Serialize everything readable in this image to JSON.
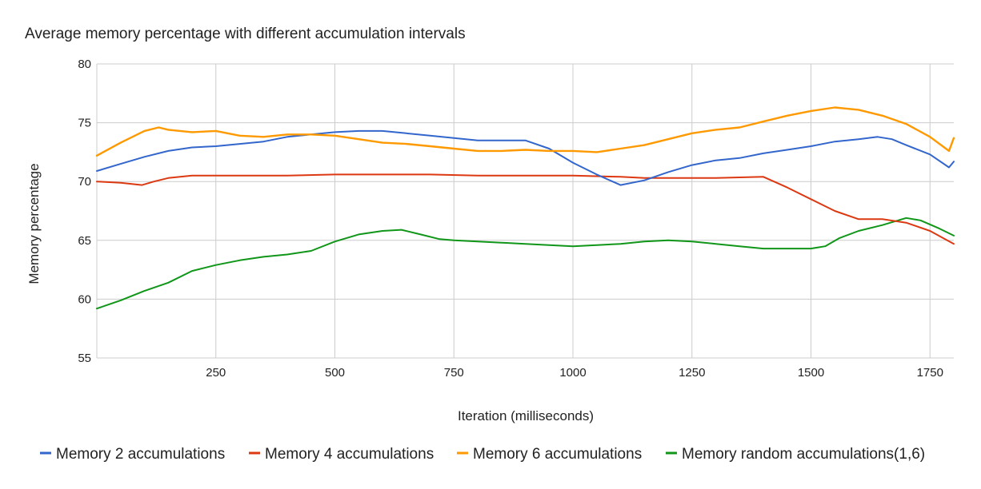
{
  "chart_data": {
    "type": "line",
    "title": "Average memory percentage with different accumulation intervals",
    "xlabel": "Iteration (milliseconds)",
    "ylabel": "Memory percentage",
    "xlim": [
      0,
      1800
    ],
    "ylim": [
      55,
      80
    ],
    "xticks": [
      250,
      500,
      750,
      1000,
      1250,
      1500,
      1750
    ],
    "yticks": [
      55,
      60,
      65,
      70,
      75,
      80
    ],
    "grid": true,
    "legend_position": "bottom",
    "series": [
      {
        "name": "Memory 2 accumulations",
        "color": "#3366cc",
        "points": [
          [
            0,
            70.9
          ],
          [
            50,
            71.5
          ],
          [
            100,
            72.1
          ],
          [
            150,
            72.6
          ],
          [
            200,
            72.9
          ],
          [
            250,
            73.0
          ],
          [
            300,
            73.2
          ],
          [
            350,
            73.4
          ],
          [
            400,
            73.8
          ],
          [
            450,
            74.0
          ],
          [
            500,
            74.2
          ],
          [
            550,
            74.3
          ],
          [
            600,
            74.3
          ],
          [
            650,
            74.1
          ],
          [
            700,
            73.9
          ],
          [
            750,
            73.7
          ],
          [
            800,
            73.5
          ],
          [
            850,
            73.5
          ],
          [
            900,
            73.5
          ],
          [
            950,
            72.8
          ],
          [
            1000,
            71.6
          ],
          [
            1050,
            70.6
          ],
          [
            1100,
            69.7
          ],
          [
            1150,
            70.1
          ],
          [
            1200,
            70.8
          ],
          [
            1250,
            71.4
          ],
          [
            1300,
            71.8
          ],
          [
            1350,
            72.0
          ],
          [
            1400,
            72.4
          ],
          [
            1450,
            72.7
          ],
          [
            1500,
            73.0
          ],
          [
            1550,
            73.4
          ],
          [
            1600,
            73.6
          ],
          [
            1640,
            73.8
          ],
          [
            1670,
            73.6
          ],
          [
            1700,
            73.1
          ],
          [
            1750,
            72.3
          ],
          [
            1790,
            71.2
          ],
          [
            1800,
            71.7
          ]
        ]
      },
      {
        "name": "Memory 4 accumulations",
        "color": "#dc3912",
        "points": [
          [
            0,
            70.0
          ],
          [
            50,
            69.9
          ],
          [
            95,
            69.7
          ],
          [
            120,
            70.0
          ],
          [
            150,
            70.3
          ],
          [
            200,
            70.5
          ],
          [
            250,
            70.5
          ],
          [
            300,
            70.5
          ],
          [
            400,
            70.5
          ],
          [
            500,
            70.6
          ],
          [
            600,
            70.6
          ],
          [
            700,
            70.6
          ],
          [
            800,
            70.5
          ],
          [
            900,
            70.5
          ],
          [
            1000,
            70.5
          ],
          [
            1100,
            70.4
          ],
          [
            1150,
            70.3
          ],
          [
            1200,
            70.3
          ],
          [
            1250,
            70.3
          ],
          [
            1300,
            70.3
          ],
          [
            1400,
            70.4
          ],
          [
            1450,
            69.5
          ],
          [
            1500,
            68.5
          ],
          [
            1550,
            67.5
          ],
          [
            1600,
            66.8
          ],
          [
            1650,
            66.8
          ],
          [
            1700,
            66.5
          ],
          [
            1750,
            65.8
          ],
          [
            1800,
            64.7
          ]
        ]
      },
      {
        "name": "Memory 6 accumulations",
        "color": "#ff9900",
        "points": [
          [
            0,
            72.2
          ],
          [
            50,
            73.3
          ],
          [
            100,
            74.3
          ],
          [
            130,
            74.6
          ],
          [
            150,
            74.4
          ],
          [
            200,
            74.2
          ],
          [
            250,
            74.3
          ],
          [
            300,
            73.9
          ],
          [
            350,
            73.8
          ],
          [
            400,
            74.0
          ],
          [
            450,
            74.0
          ],
          [
            500,
            73.9
          ],
          [
            550,
            73.6
          ],
          [
            600,
            73.3
          ],
          [
            650,
            73.2
          ],
          [
            700,
            73.0
          ],
          [
            750,
            72.8
          ],
          [
            800,
            72.6
          ],
          [
            850,
            72.6
          ],
          [
            900,
            72.7
          ],
          [
            950,
            72.6
          ],
          [
            1000,
            72.6
          ],
          [
            1050,
            72.5
          ],
          [
            1100,
            72.8
          ],
          [
            1150,
            73.1
          ],
          [
            1200,
            73.6
          ],
          [
            1250,
            74.1
          ],
          [
            1300,
            74.4
          ],
          [
            1350,
            74.6
          ],
          [
            1400,
            75.1
          ],
          [
            1450,
            75.6
          ],
          [
            1500,
            76.0
          ],
          [
            1550,
            76.3
          ],
          [
            1600,
            76.1
          ],
          [
            1650,
            75.6
          ],
          [
            1700,
            74.9
          ],
          [
            1750,
            73.8
          ],
          [
            1790,
            72.6
          ],
          [
            1800,
            73.7
          ]
        ]
      },
      {
        "name": "Memory random accumulations(1,6)",
        "color": "#109618",
        "points": [
          [
            0,
            59.2
          ],
          [
            50,
            59.9
          ],
          [
            100,
            60.7
          ],
          [
            150,
            61.4
          ],
          [
            200,
            62.4
          ],
          [
            250,
            62.9
          ],
          [
            300,
            63.3
          ],
          [
            350,
            63.6
          ],
          [
            400,
            63.8
          ],
          [
            450,
            64.1
          ],
          [
            500,
            64.9
          ],
          [
            550,
            65.5
          ],
          [
            600,
            65.8
          ],
          [
            640,
            65.9
          ],
          [
            680,
            65.5
          ],
          [
            720,
            65.1
          ],
          [
            750,
            65.0
          ],
          [
            800,
            64.9
          ],
          [
            850,
            64.8
          ],
          [
            900,
            64.7
          ],
          [
            950,
            64.6
          ],
          [
            1000,
            64.5
          ],
          [
            1050,
            64.6
          ],
          [
            1100,
            64.7
          ],
          [
            1150,
            64.9
          ],
          [
            1200,
            65.0
          ],
          [
            1250,
            64.9
          ],
          [
            1300,
            64.7
          ],
          [
            1350,
            64.5
          ],
          [
            1400,
            64.3
          ],
          [
            1450,
            64.3
          ],
          [
            1500,
            64.3
          ],
          [
            1530,
            64.5
          ],
          [
            1560,
            65.2
          ],
          [
            1600,
            65.8
          ],
          [
            1650,
            66.3
          ],
          [
            1700,
            66.9
          ],
          [
            1730,
            66.7
          ],
          [
            1770,
            66.0
          ],
          [
            1800,
            65.4
          ]
        ]
      }
    ]
  }
}
